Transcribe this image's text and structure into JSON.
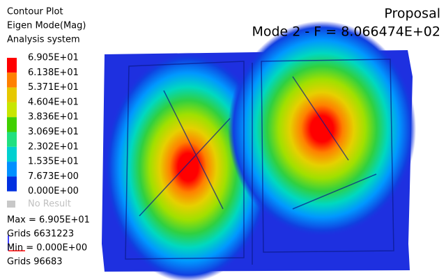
{
  "header": {
    "lines": [
      "Contour Plot",
      "Eigen Mode(Mag)",
      "Analysis system"
    ],
    "title": "Proposal",
    "subtitle": "Mode 2 - F = 8.066474E+02"
  },
  "legend": {
    "levels": [
      "6.905E+01",
      "6.138E+01",
      "5.371E+01",
      "4.604E+01",
      "3.836E+01",
      "3.069E+01",
      "2.302E+01",
      "1.535E+01",
      "7.673E+00",
      "0.000E+00"
    ],
    "colors": [
      "#ff0000",
      "#ff8000",
      "#e6c800",
      "#c8e600",
      "#40d000",
      "#20e080",
      "#00d0d0",
      "#0090ff",
      "#0030e0"
    ],
    "no_result": "No Result"
  },
  "stats": [
    "Max = 6.905E+01",
    "Grids 6631223",
    "Min = 0.000E+00",
    "Grids 96683"
  ]
}
